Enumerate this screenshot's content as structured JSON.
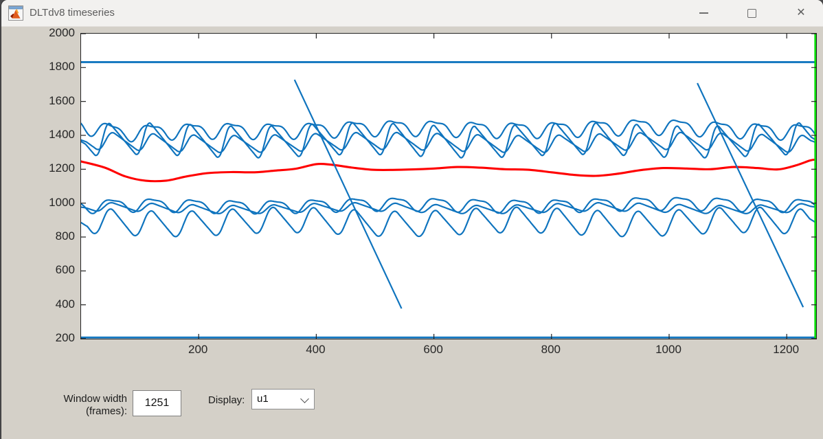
{
  "window": {
    "title": "DLTdv8 timeseries",
    "icons": {
      "app": "matlab-logo-icon",
      "minimize": "horizontal-line",
      "maximize": "square-outline",
      "close_glyph": "✕"
    }
  },
  "controls": {
    "window_width": {
      "label_line1": "Window width",
      "label_line2": "(frames):",
      "value": "1251"
    },
    "display": {
      "label": "Display:",
      "value": "u1"
    }
  },
  "chart_data": {
    "type": "line",
    "title": "",
    "xlabel": "",
    "ylabel": "",
    "xlim": [
      0,
      1250
    ],
    "ylim": [
      200,
      2000
    ],
    "x_ticks": [
      200,
      400,
      600,
      800,
      1000,
      1200
    ],
    "y_ticks": [
      200,
      400,
      600,
      800,
      1000,
      1200,
      1400,
      1600,
      1800,
      2000
    ],
    "grid": false,
    "box": true,
    "colors": {
      "trace_blue": "#0F74BE",
      "trace_red": "#FF0000",
      "frame_marker_green": "#00DE00"
    },
    "frame_marker": {
      "x": 1250,
      "color": "#00DE00",
      "width": 2.6
    },
    "series": [
      {
        "name": "flat-top",
        "kind": "hline",
        "value": 1832,
        "color": "#0F74BE",
        "width": 2.8
      },
      {
        "name": "flat-bottom",
        "kind": "hline",
        "value": 207,
        "color": "#0F74BE",
        "width": 2.8
      },
      {
        "name": "upper-smooth-wave",
        "kind": "wave",
        "color": "#0F74BE",
        "width": 2.2,
        "period": 69,
        "phase": 32.75,
        "amp": 42,
        "h2": 0.35,
        "base": [
          [
            0,
            1462
          ],
          [
            70,
            1408
          ],
          [
            250,
            1438
          ],
          [
            600,
            1442
          ],
          [
            1000,
            1448
          ],
          [
            1250,
            1432
          ]
        ],
        "mod": {
          "period": 430,
          "amp": 8,
          "phase": 0
        }
      },
      {
        "name": "upper-saw-large",
        "kind": "saw",
        "color": "#0F74BE",
        "width": 2.2,
        "period": 69,
        "phase": 31,
        "rise": 0.16,
        "low": 1248,
        "high": 1492,
        "smooth": 9,
        "mod": {
          "period": 380,
          "amp": 10,
          "phase": 0
        }
      },
      {
        "name": "upper-saw-small",
        "kind": "saw",
        "color": "#0F74BE",
        "width": 2.2,
        "period": 69,
        "phase": 35,
        "rise": 0.18,
        "low": 1288,
        "high": 1428,
        "smooth": 11,
        "mod": {
          "period": 500,
          "amp": 9,
          "phase": 1.5
        }
      },
      {
        "name": "lower-smooth-wave",
        "kind": "wave",
        "color": "#0F74BE",
        "width": 2.2,
        "period": 69,
        "phase": 36,
        "amp": 36,
        "h2": 0.3,
        "base": [
          [
            0,
            978
          ],
          [
            120,
            988
          ],
          [
            600,
            992
          ],
          [
            1250,
            998
          ]
        ],
        "mod": {
          "period": 460,
          "amp": 7,
          "phase": 0.6
        }
      },
      {
        "name": "lower-saw-small",
        "kind": "saw",
        "color": "#0F74BE",
        "width": 2.2,
        "period": 69,
        "phase": 33,
        "rise": 0.18,
        "low": 936,
        "high": 1004,
        "smooth": 11,
        "mod": {
          "period": 420,
          "amp": 8,
          "phase": 0.8
        }
      },
      {
        "name": "lower-saw-deep",
        "kind": "saw",
        "color": "#0F74BE",
        "width": 2.2,
        "period": 69,
        "phase": 29,
        "rise": 0.22,
        "low": 778,
        "high": 1000,
        "smooth": 13,
        "mod": {
          "period": 390,
          "amp": 12,
          "phase": 2.2
        }
      },
      {
        "name": "red-trace",
        "kind": "points",
        "color": "#FF0000",
        "width": 3.1,
        "points": [
          [
            0,
            1246
          ],
          [
            40,
            1210
          ],
          [
            75,
            1158
          ],
          [
            110,
            1132
          ],
          [
            145,
            1133
          ],
          [
            180,
            1158
          ],
          [
            215,
            1177
          ],
          [
            255,
            1183
          ],
          [
            295,
            1182
          ],
          [
            330,
            1192
          ],
          [
            365,
            1203
          ],
          [
            400,
            1230
          ],
          [
            425,
            1227
          ],
          [
            460,
            1210
          ],
          [
            495,
            1197
          ],
          [
            530,
            1196
          ],
          [
            565,
            1199
          ],
          [
            600,
            1204
          ],
          [
            640,
            1213
          ],
          [
            680,
            1209
          ],
          [
            720,
            1200
          ],
          [
            760,
            1197
          ],
          [
            800,
            1182
          ],
          [
            840,
            1166
          ],
          [
            875,
            1161
          ],
          [
            910,
            1172
          ],
          [
            950,
            1194
          ],
          [
            990,
            1207
          ],
          [
            1030,
            1204
          ],
          [
            1070,
            1200
          ],
          [
            1110,
            1213
          ],
          [
            1150,
            1207
          ],
          [
            1185,
            1199
          ],
          [
            1215,
            1222
          ],
          [
            1240,
            1252
          ],
          [
            1250,
            1257
          ]
        ]
      },
      {
        "name": "diagonal-1",
        "kind": "segment",
        "color": "#0F74BE",
        "width": 2.2,
        "from": [
          363,
          1728
        ],
        "to": [
          545,
          378
        ]
      },
      {
        "name": "diagonal-2",
        "kind": "segment",
        "color": "#0F74BE",
        "width": 2.2,
        "from": [
          1048,
          1708
        ],
        "to": [
          1228,
          386
        ]
      }
    ]
  }
}
